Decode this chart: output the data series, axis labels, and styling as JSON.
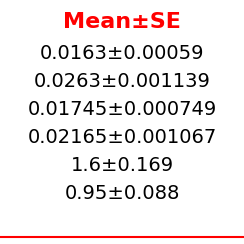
{
  "title": "Mean±SE",
  "title_color": "#FF0000",
  "rows": [
    "0.0163±0.00059",
    "0.0263±0.001139",
    "0.01745±0.000749",
    "0.02165±0.001067",
    "1.6±0.169",
    "0.95±0.088"
  ],
  "text_color": "#000000",
  "background_color": "#FFFFFF",
  "line_color": "#FF0000",
  "title_fontsize": 16,
  "row_fontsize": 14,
  "title_fontweight": "bold"
}
